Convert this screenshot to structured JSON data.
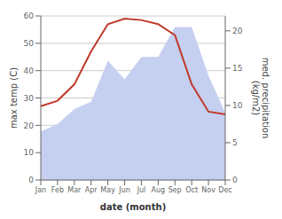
{
  "chart_data": {
    "type": "line",
    "xlabel": "date (month)",
    "ylabel": "max temp (C)",
    "y2label": "med. precipitation\n(kg/m2)",
    "categories": [
      "Jan",
      "Feb",
      "Mar",
      "Apr",
      "May",
      "Jun",
      "Jul",
      "Aug",
      "Sep",
      "Oct",
      "Nov",
      "Dec"
    ],
    "series": [
      {
        "type": "area",
        "axis": "y2",
        "color": "#c5cff0",
        "values": [
          6.5,
          7.5,
          9.5,
          10.5,
          16,
          13.5,
          16.5,
          16.5,
          20.5,
          20.5,
          14,
          9
        ]
      },
      {
        "type": "line",
        "color": "#c0392b",
        "values": [
          27,
          29,
          35,
          47,
          57,
          59,
          58.5,
          57,
          53,
          35,
          25,
          24
        ]
      }
    ],
    "ylim": [
      0,
      60
    ],
    "yticks": [
      0,
      10,
      20,
      30,
      40,
      50,
      60
    ],
    "y2lim": [
      0,
      22
    ],
    "y2ticks": [
      0,
      5,
      10,
      15,
      20
    ],
    "grid": true
  }
}
